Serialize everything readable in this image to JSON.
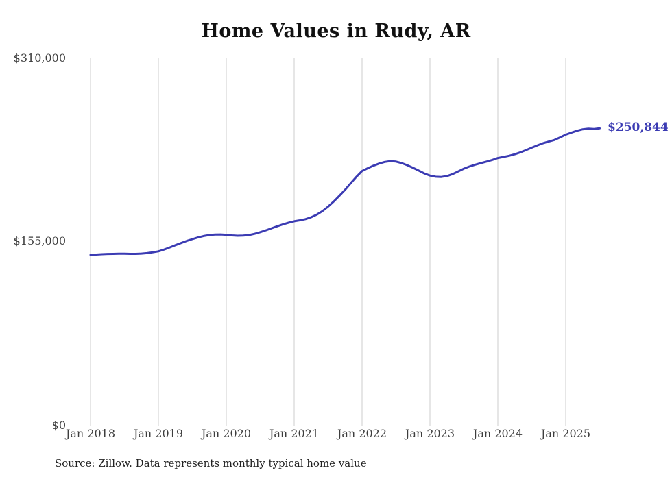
{
  "title": "Home Values in Rudy, AR",
  "source_note": "Source: Zillow. Data represents monthly typical home value",
  "end_label": "$250,844",
  "colors": {
    "line": "#3b3bb3",
    "grid": "#cccccc",
    "axis_text": "#3d3d3d",
    "background": "#ffffff"
  },
  "chart_data": {
    "type": "line",
    "title": "Home Values in Rudy, AR",
    "xlabel": "",
    "ylabel": "",
    "ylim": [
      0,
      310000
    ],
    "grid": "vertical-only",
    "legend": "none",
    "x_start": "Jan 2018",
    "x_end": "Jul 2025",
    "x_interval": "monthly",
    "x_tick_labels": [
      "Jan 2018",
      "Jan 2019",
      "Jan 2020",
      "Jan 2021",
      "Jan 2022",
      "Jan 2023",
      "Jan 2024",
      "Jan 2025"
    ],
    "y_ticks": [
      {
        "label": "$310,000",
        "value": 310000
      },
      {
        "label": "$155,000",
        "value": 155000
      },
      {
        "label": "$0",
        "value": 0
      }
    ],
    "final_value": 250844,
    "final_value_label": "$250,844",
    "series": [
      {
        "name": "Monthly typical home value",
        "monthly_values": [
          144000,
          144300,
          144600,
          144800,
          144900,
          145000,
          145000,
          144900,
          144900,
          145100,
          145500,
          146200,
          147000,
          148500,
          150300,
          152200,
          154000,
          155800,
          157300,
          158800,
          160000,
          160800,
          161200,
          161300,
          161000,
          160500,
          160200,
          160300,
          160800,
          161800,
          163200,
          164800,
          166500,
          168200,
          169800,
          171200,
          172400,
          173200,
          174200,
          175800,
          178000,
          181000,
          184800,
          189200,
          194000,
          199000,
          204500,
          210000,
          214800,
          217200,
          219300,
          221100,
          222500,
          223200,
          222800,
          221500,
          219700,
          217500,
          215200,
          212800,
          211000,
          210000,
          209800,
          210600,
          212200,
          214500,
          216800,
          218700,
          220200,
          221500,
          222800,
          224200,
          225800,
          226700,
          227700,
          229000,
          230600,
          232500,
          234500,
          236500,
          238300,
          239700,
          241000,
          243200,
          245500,
          247200,
          248800,
          250000,
          250600,
          250300,
          250844
        ]
      }
    ]
  }
}
